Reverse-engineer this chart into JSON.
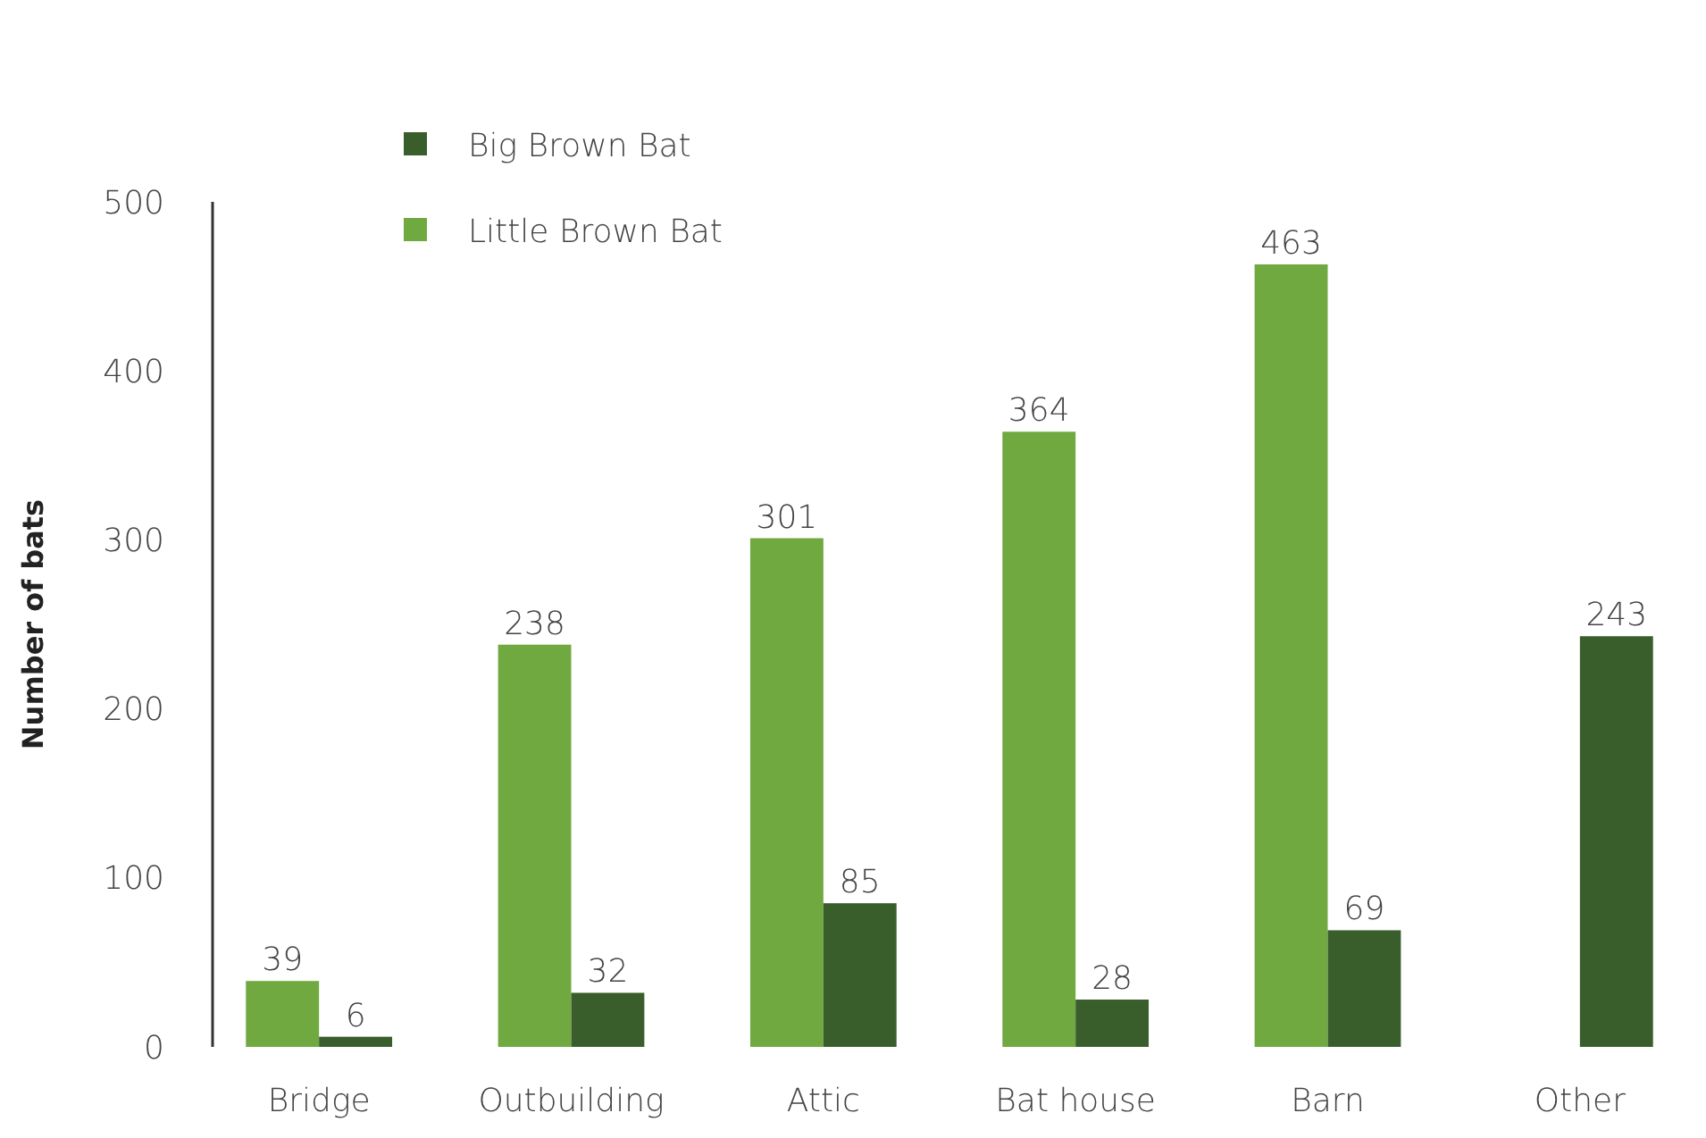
{
  "chart_data": {
    "type": "bar",
    "ylabel": "Number of bats",
    "categories": [
      "Bridge",
      "Outbuilding",
      "Attic",
      "Bat house",
      "Barn",
      "Other"
    ],
    "series": [
      {
        "name": "Little Brown Bat",
        "color": "#70a940",
        "values": [
          39,
          238,
          301,
          364,
          463,
          null
        ]
      },
      {
        "name": "Big Brown Bat",
        "color": "#3a5e2b",
        "values": [
          6,
          32,
          85,
          28,
          69,
          243
        ]
      }
    ],
    "ylim": [
      0,
      500
    ],
    "yticks": [
      0,
      100,
      200,
      300,
      400,
      500
    ],
    "grid": false,
    "legend": "top left",
    "data_labels": true
  }
}
